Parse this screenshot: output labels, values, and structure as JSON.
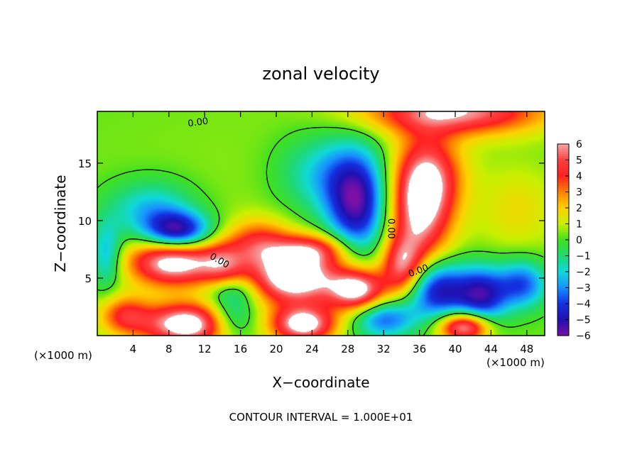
{
  "chart_data": {
    "type": "heatmap",
    "title": "zonal velocity",
    "xlabel": "X−coordinate",
    "ylabel": "Z−coordinate",
    "x_unit_left": "(×1000 m)",
    "x_unit_right": "(×1000 m)",
    "footer": "CONTOUR INTERVAL = 1.000E+01",
    "contour_label": "0.00",
    "xlim": [
      0,
      50
    ],
    "ylim": [
      0,
      19.5
    ],
    "x_ticks": [
      4,
      8,
      12,
      16,
      20,
      24,
      28,
      32,
      36,
      40,
      44,
      48
    ],
    "y_ticks": [
      5,
      10,
      15
    ],
    "colorbar": {
      "min": -6,
      "max": 6,
      "labels": [
        "6",
        "5",
        "4",
        "3",
        "2",
        "1",
        "0",
        "−1",
        "−2",
        "−3",
        "−4",
        "−5",
        "−6"
      ],
      "colors": [
        "#f4a6a6",
        "#ff4040",
        "#ff2020",
        "#ff8000",
        "#ffd000",
        "#c8f000",
        "#40e020",
        "#20d870",
        "#10d8d8",
        "#1890ff",
        "#1430e0",
        "#2010b0",
        "#7a10a8"
      ]
    },
    "blobs": [
      {
        "x": 25,
        "y": 10,
        "sx": 30,
        "sy": 12,
        "v": 0.6
      },
      {
        "x": 29,
        "y": 11.5,
        "sx": 2.4,
        "sy": 3.2,
        "v": -5.8
      },
      {
        "x": 25,
        "y": 14,
        "sx": 3.5,
        "sy": 2.5,
        "v": -2.5
      },
      {
        "x": 36,
        "y": 11,
        "sx": 2.4,
        "sy": 3.5,
        "v": 5.6
      },
      {
        "x": 37.5,
        "y": 14,
        "sx": 2.5,
        "sy": 2.5,
        "v": 3.2
      },
      {
        "x": 40,
        "y": 19.5,
        "sx": 7,
        "sy": 1.4,
        "v": 5.6
      },
      {
        "x": 8.5,
        "y": 6.5,
        "sx": 3.5,
        "sy": 1.5,
        "v": 6.8
      },
      {
        "x": 9,
        "y": 9,
        "sx": 2.6,
        "sy": 1.2,
        "v": -6
      },
      {
        "x": 6,
        "y": 11,
        "sx": 3.5,
        "sy": 1.8,
        "v": -2.8
      },
      {
        "x": 22,
        "y": 5,
        "sx": 3.5,
        "sy": 1.6,
        "v": 7
      },
      {
        "x": 29,
        "y": 4,
        "sx": 2.2,
        "sy": 1.3,
        "v": 6.4
      },
      {
        "x": 18,
        "y": 8,
        "sx": 2.5,
        "sy": 1.5,
        "v": 3.5
      },
      {
        "x": 14,
        "y": 6,
        "sx": 1.8,
        "sy": 1.5,
        "v": 3
      },
      {
        "x": 24,
        "y": 7.5,
        "sx": 3,
        "sy": 1,
        "v": 4
      },
      {
        "x": 34,
        "y": 6,
        "sx": 1.6,
        "sy": 1.8,
        "v": 4.5
      },
      {
        "x": 38,
        "y": 4,
        "sx": 2.5,
        "sy": 1.8,
        "v": -5.5
      },
      {
        "x": 43,
        "y": 3.5,
        "sx": 2,
        "sy": 1.8,
        "v": -5
      },
      {
        "x": 47.5,
        "y": 4.5,
        "sx": 2,
        "sy": 1.5,
        "v": -4
      },
      {
        "x": 10,
        "y": 1,
        "sx": 3.5,
        "sy": 1.3,
        "v": 7
      },
      {
        "x": 23,
        "y": 1,
        "sx": 2.5,
        "sy": 1.1,
        "v": 6.5
      },
      {
        "x": 41,
        "y": 0.8,
        "sx": 2,
        "sy": 0.9,
        "v": 6.5
      },
      {
        "x": 3,
        "y": 1.8,
        "sx": 2,
        "sy": 1.2,
        "v": 3.5
      },
      {
        "x": 15,
        "y": 1.5,
        "sx": 2,
        "sy": 1.3,
        "v": -3
      },
      {
        "x": 32,
        "y": 1.5,
        "sx": 2.5,
        "sy": 1.2,
        "v": -4
      },
      {
        "x": 1,
        "y": 7,
        "sx": 1.2,
        "sy": 2,
        "v": -3
      },
      {
        "x": 47,
        "y": 11,
        "sx": 3,
        "sy": 2.5,
        "v": 1.2
      },
      {
        "x": 15,
        "y": 4,
        "sx": 2,
        "sy": 1,
        "v": -2.5
      }
    ]
  }
}
